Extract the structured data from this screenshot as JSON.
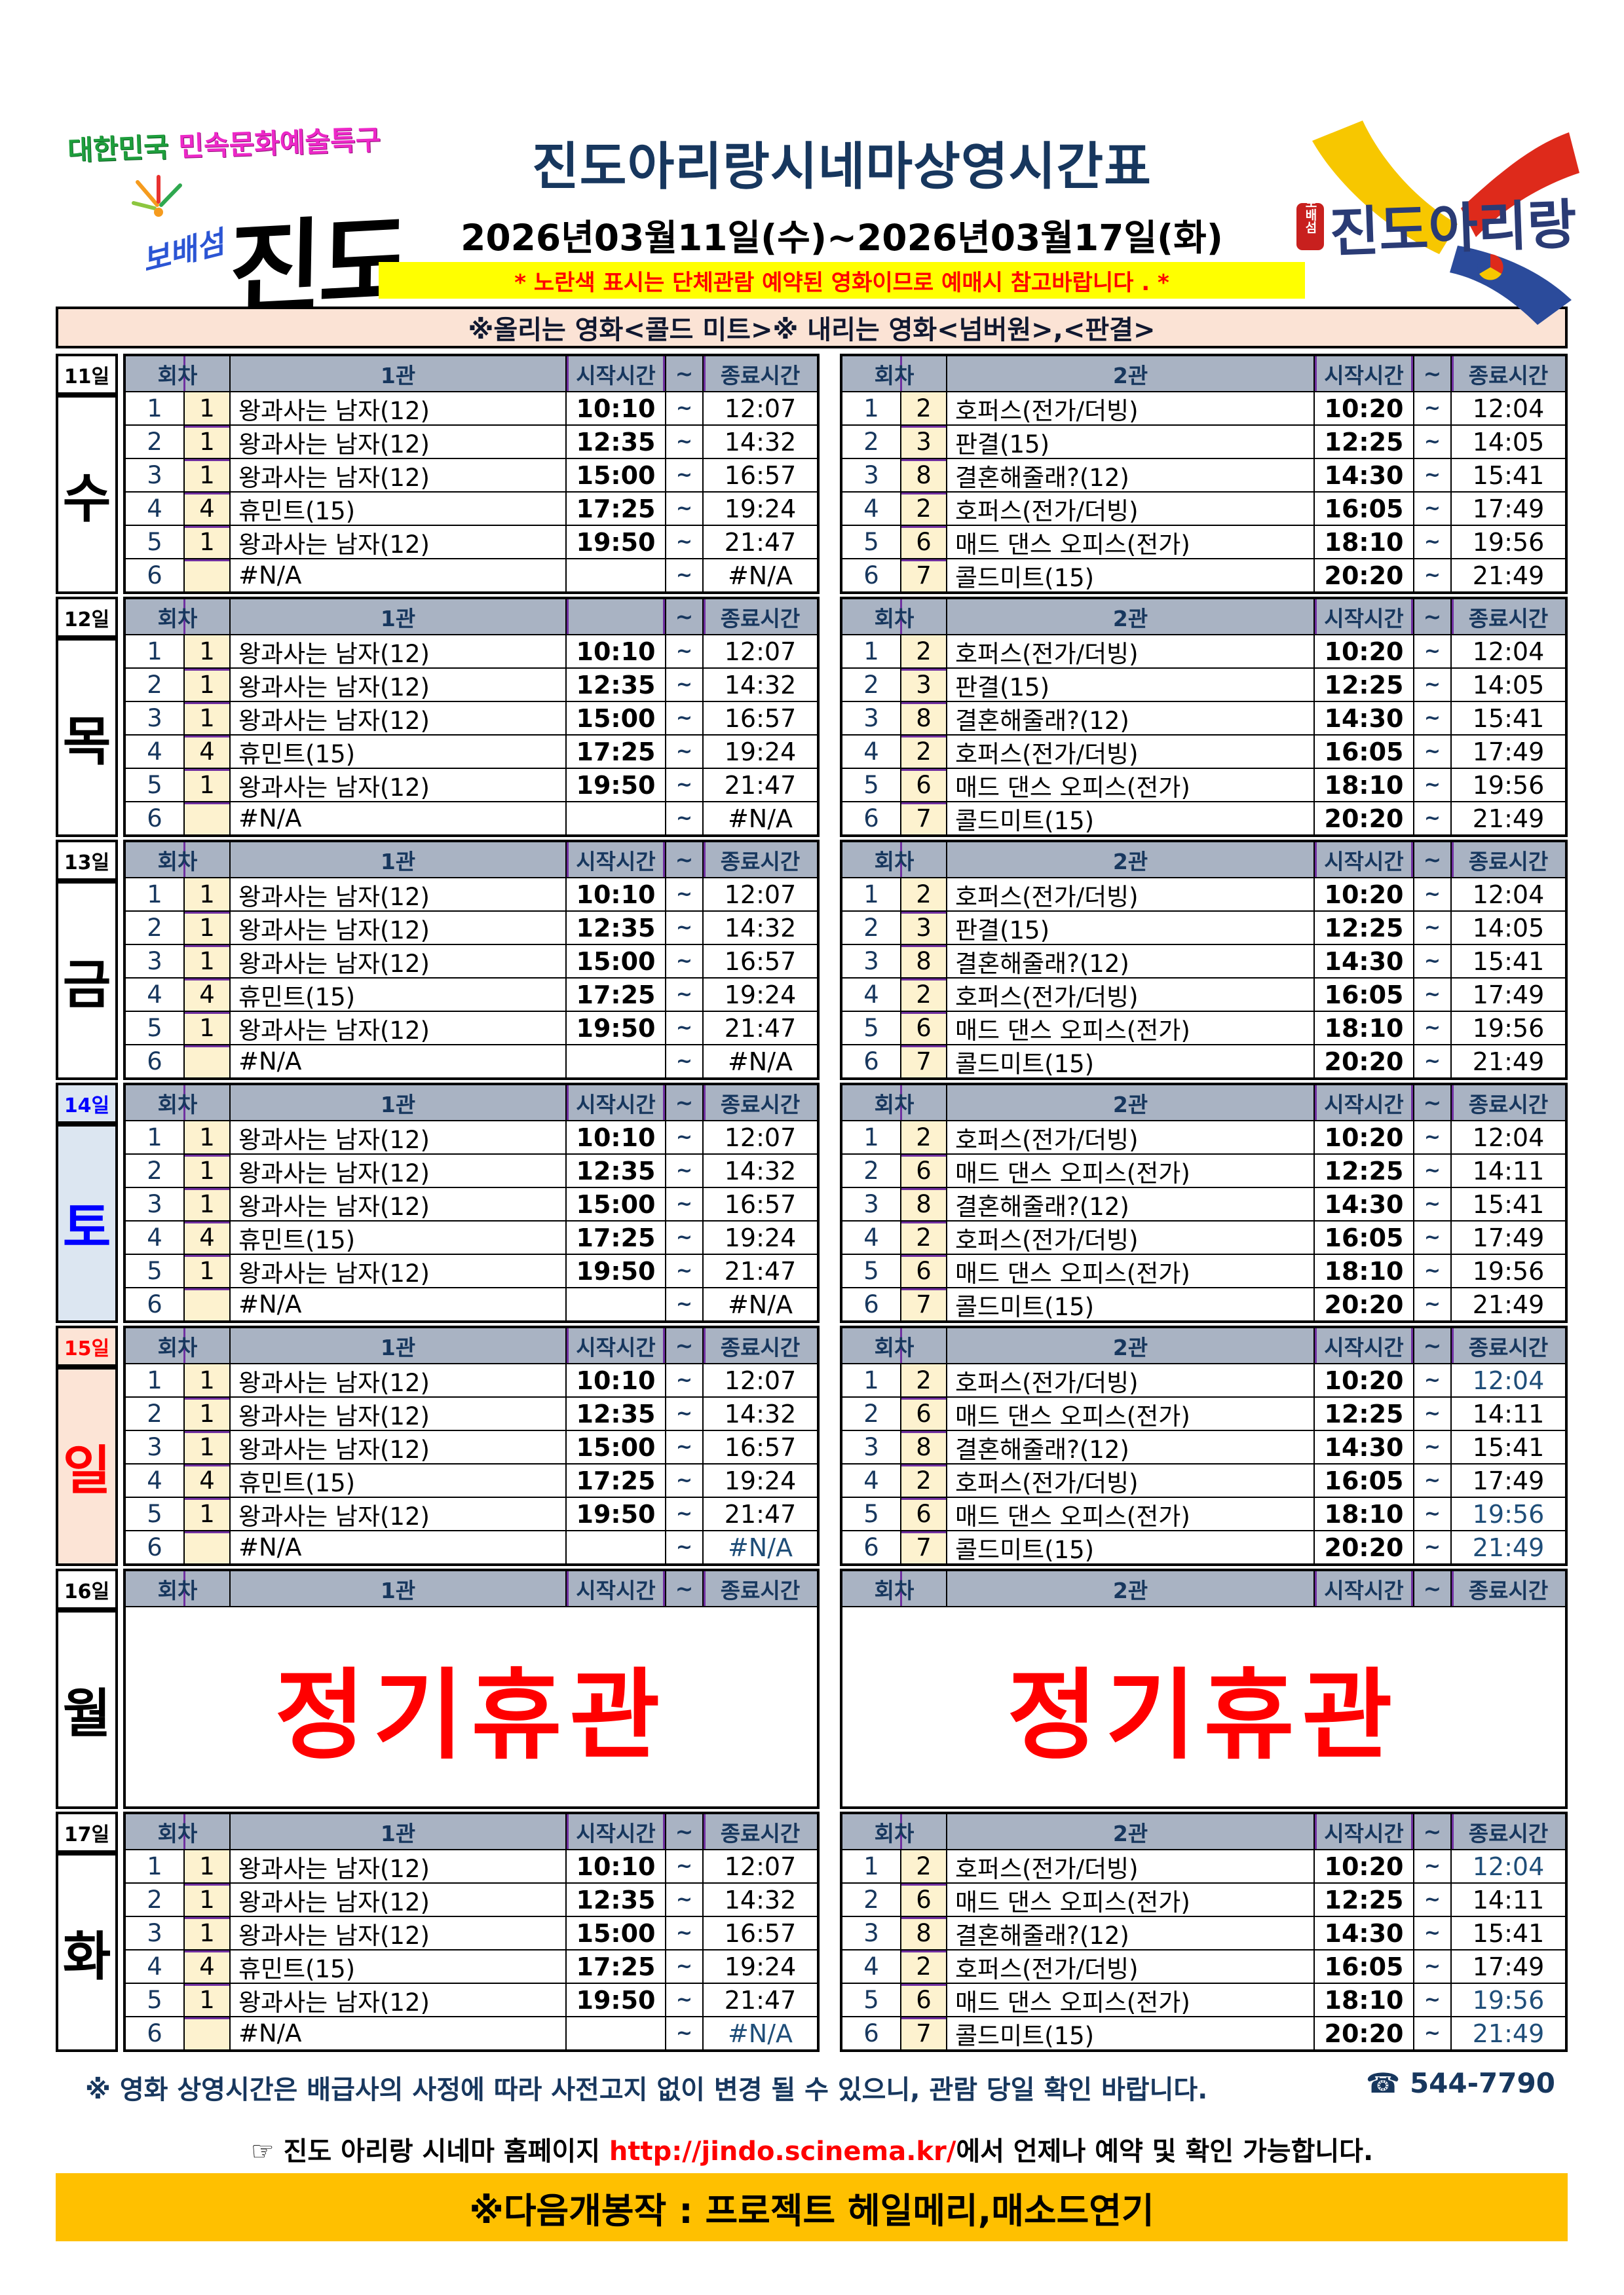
{
  "header": {
    "badge_line1a": "대한민국",
    "badge_line1b": " 민속문화예술특구",
    "badge_line2a": "보배섬",
    "badge_line2b": "진도",
    "title": "진도아리랑시네마상영시간표",
    "date_range": "2026년03월11일(수)~2026년03월17일(화)",
    "yellow_notice": "* 노란색 표시는 단체관람 예약된 영화이므로 예매시 참고바랍니다 . *",
    "movie_notice": "※올리는 영화<콜드 미트>※ 내리는 영화<넘버원>,<판결>",
    "logo_right_text": "진도아리랑",
    "logo_right_seal": "보배섬"
  },
  "colors": {
    "navy": "#17375E",
    "header_bg": "#A9B3C3",
    "cream": "#FDF2CF",
    "purple": "#7030A0",
    "saturday_text": "#0000FF",
    "saturday_bg": "#DCE6F1",
    "sunday_text": "#FF0000",
    "sunday_bg": "#FCE4D6",
    "blue_time": "#1F4E79",
    "yellow_bar": "#FFFF00",
    "peach_bar": "#FBE3D5",
    "orange_banner": "#FFC000",
    "closed_red": "#FF0000"
  },
  "schedule": {
    "labels": {
      "round": "회차",
      "start": "시작시간",
      "tilde": "~",
      "end": "종료시간"
    },
    "closed_label": "정기휴관",
    "days": [
      {
        "date": "11일",
        "day": "수",
        "day_style": "",
        "closed": false,
        "t1": {
          "name": "1관",
          "start_header": "시작시간",
          "rows": [
            {
              "no": "1",
              "code": "1",
              "title": "왕과사는 남자(12)",
              "start": "10:10",
              "end": "12:07"
            },
            {
              "no": "2",
              "code": "1",
              "title": "왕과사는 남자(12)",
              "start": "12:35",
              "end": "14:32"
            },
            {
              "no": "3",
              "code": "1",
              "title": "왕과사는 남자(12)",
              "start": "15:00",
              "end": "16:57"
            },
            {
              "no": "4",
              "code": "4",
              "title": "휴민트(15)",
              "start": "17:25",
              "end": "19:24"
            },
            {
              "no": "5",
              "code": "1",
              "title": "왕과사는 남자(12)",
              "start": "19:50",
              "end": "21:47"
            },
            {
              "no": "6",
              "code": "",
              "title": "#N/A",
              "start": "",
              "end": "#N/A"
            }
          ]
        },
        "t2": {
          "name": "2관",
          "start_header": "시작시간",
          "rows": [
            {
              "no": "1",
              "code": "2",
              "title": "호퍼스(전가/더빙)",
              "start": "10:20",
              "end": "12:04"
            },
            {
              "no": "2",
              "code": "3",
              "title": "판결(15)",
              "start": "12:25",
              "end": "14:05"
            },
            {
              "no": "3",
              "code": "8",
              "title": "결혼해줄래?(12)",
              "start": "14:30",
              "end": "15:41"
            },
            {
              "no": "4",
              "code": "2",
              "title": "호퍼스(전가/더빙)",
              "start": "16:05",
              "end": "17:49"
            },
            {
              "no": "5",
              "code": "6",
              "title": "매드 댄스 오피스(전가)",
              "start": "18:10",
              "end": "19:56"
            },
            {
              "no": "6",
              "code": "7",
              "title": "콜드미트(15)",
              "start": "20:20",
              "end": "21:49"
            }
          ]
        }
      },
      {
        "date": "12일",
        "day": "목",
        "day_style": "",
        "closed": false,
        "t1": {
          "name": "1관",
          "start_header": "",
          "rows": [
            {
              "no": "1",
              "code": "1",
              "title": "왕과사는 남자(12)",
              "start": "10:10",
              "end": "12:07"
            },
            {
              "no": "2",
              "code": "1",
              "title": "왕과사는 남자(12)",
              "start": "12:35",
              "end": "14:32"
            },
            {
              "no": "3",
              "code": "1",
              "title": "왕과사는 남자(12)",
              "start": "15:00",
              "end": "16:57"
            },
            {
              "no": "4",
              "code": "4",
              "title": "휴민트(15)",
              "start": "17:25",
              "end": "19:24"
            },
            {
              "no": "5",
              "code": "1",
              "title": "왕과사는 남자(12)",
              "start": "19:50",
              "end": "21:47"
            },
            {
              "no": "6",
              "code": "",
              "title": "#N/A",
              "start": "",
              "end": "#N/A"
            }
          ]
        },
        "t2": {
          "name": "2관",
          "start_header": "시작시간",
          "rows": [
            {
              "no": "1",
              "code": "2",
              "title": "호퍼스(전가/더빙)",
              "start": "10:20",
              "end": "12:04"
            },
            {
              "no": "2",
              "code": "3",
              "title": "판결(15)",
              "start": "12:25",
              "end": "14:05"
            },
            {
              "no": "3",
              "code": "8",
              "title": "결혼해줄래?(12)",
              "start": "14:30",
              "end": "15:41"
            },
            {
              "no": "4",
              "code": "2",
              "title": "호퍼스(전가/더빙)",
              "start": "16:05",
              "end": "17:49"
            },
            {
              "no": "5",
              "code": "6",
              "title": "매드 댄스 오피스(전가)",
              "start": "18:10",
              "end": "19:56"
            },
            {
              "no": "6",
              "code": "7",
              "title": "콜드미트(15)",
              "start": "20:20",
              "end": "21:49"
            }
          ]
        }
      },
      {
        "date": "13일",
        "day": "금",
        "day_style": "",
        "closed": false,
        "t1": {
          "name": "1관",
          "start_header": "시작시간",
          "rows": [
            {
              "no": "1",
              "code": "1",
              "title": "왕과사는 남자(12)",
              "start": "10:10",
              "end": "12:07"
            },
            {
              "no": "2",
              "code": "1",
              "title": "왕과사는 남자(12)",
              "start": "12:35",
              "end": "14:32"
            },
            {
              "no": "3",
              "code": "1",
              "title": "왕과사는 남자(12)",
              "start": "15:00",
              "end": "16:57"
            },
            {
              "no": "4",
              "code": "4",
              "title": "휴민트(15)",
              "start": "17:25",
              "end": "19:24"
            },
            {
              "no": "5",
              "code": "1",
              "title": "왕과사는 남자(12)",
              "start": "19:50",
              "end": "21:47"
            },
            {
              "no": "6",
              "code": "",
              "title": "#N/A",
              "start": "",
              "end": "#N/A"
            }
          ]
        },
        "t2": {
          "name": "2관",
          "start_header": "시작시간",
          "rows": [
            {
              "no": "1",
              "code": "2",
              "title": "호퍼스(전가/더빙)",
              "start": "10:20",
              "end": "12:04"
            },
            {
              "no": "2",
              "code": "3",
              "title": "판결(15)",
              "start": "12:25",
              "end": "14:05"
            },
            {
              "no": "3",
              "code": "8",
              "title": "결혼해줄래?(12)",
              "start": "14:30",
              "end": "15:41"
            },
            {
              "no": "4",
              "code": "2",
              "title": "호퍼스(전가/더빙)",
              "start": "16:05",
              "end": "17:49"
            },
            {
              "no": "5",
              "code": "6",
              "title": "매드 댄스 오피스(전가)",
              "start": "18:10",
              "end": "19:56"
            },
            {
              "no": "6",
              "code": "7",
              "title": "콜드미트(15)",
              "start": "20:20",
              "end": "21:49"
            }
          ]
        }
      },
      {
        "date": "14일",
        "day": "토",
        "day_style": "sat",
        "closed": false,
        "t1": {
          "name": "1관",
          "start_header": "시작시간",
          "rows": [
            {
              "no": "1",
              "code": "1",
              "title": "왕과사는 남자(12)",
              "start": "10:10",
              "end": "12:07"
            },
            {
              "no": "2",
              "code": "1",
              "title": "왕과사는 남자(12)",
              "start": "12:35",
              "end": "14:32"
            },
            {
              "no": "3",
              "code": "1",
              "title": "왕과사는 남자(12)",
              "start": "15:00",
              "end": "16:57"
            },
            {
              "no": "4",
              "code": "4",
              "title": "휴민트(15)",
              "start": "17:25",
              "end": "19:24"
            },
            {
              "no": "5",
              "code": "1",
              "title": "왕과사는 남자(12)",
              "start": "19:50",
              "end": "21:47"
            },
            {
              "no": "6",
              "code": "",
              "title": "#N/A",
              "start": "",
              "end": "#N/A"
            }
          ]
        },
        "t2": {
          "name": "2관",
          "start_header": "시작시간",
          "rows": [
            {
              "no": "1",
              "code": "2",
              "title": "호퍼스(전가/더빙)",
              "start": "10:20",
              "end": "12:04"
            },
            {
              "no": "2",
              "code": "6",
              "title": "매드 댄스 오피스(전가)",
              "start": "12:25",
              "end": "14:11"
            },
            {
              "no": "3",
              "code": "8",
              "title": "결혼해줄래?(12)",
              "start": "14:30",
              "end": "15:41"
            },
            {
              "no": "4",
              "code": "2",
              "title": "호퍼스(전가/더빙)",
              "start": "16:05",
              "end": "17:49"
            },
            {
              "no": "5",
              "code": "6",
              "title": "매드 댄스 오피스(전가)",
              "start": "18:10",
              "end": "19:56"
            },
            {
              "no": "6",
              "code": "7",
              "title": "콜드미트(15)",
              "start": "20:20",
              "end": "21:49"
            }
          ]
        }
      },
      {
        "date": "15일",
        "day": "일",
        "day_style": "sun",
        "closed": false,
        "t1": {
          "name": "1관",
          "start_header": "시작시간",
          "rows": [
            {
              "no": "1",
              "code": "1",
              "title": "왕과사는 남자(12)",
              "start": "10:10",
              "end": "12:07"
            },
            {
              "no": "2",
              "code": "1",
              "title": "왕과사는 남자(12)",
              "start": "12:35",
              "end": "14:32"
            },
            {
              "no": "3",
              "code": "1",
              "title": "왕과사는 남자(12)",
              "start": "15:00",
              "end": "16:57"
            },
            {
              "no": "4",
              "code": "4",
              "title": "휴민트(15)",
              "start": "17:25",
              "end": "19:24"
            },
            {
              "no": "5",
              "code": "1",
              "title": "왕과사는 남자(12)",
              "start": "19:50",
              "end": "21:47"
            },
            {
              "no": "6",
              "code": "",
              "title": "#N/A",
              "start": "",
              "end": "#N/A",
              "end_blue": true
            }
          ]
        },
        "t2": {
          "name": "2관",
          "start_header": "시작시간",
          "rows": [
            {
              "no": "1",
              "code": "2",
              "title": "호퍼스(전가/더빙)",
              "start": "10:20",
              "end": "12:04",
              "end_blue": true
            },
            {
              "no": "2",
              "code": "6",
              "title": "매드 댄스 오피스(전가)",
              "start": "12:25",
              "end": "14:11"
            },
            {
              "no": "3",
              "code": "8",
              "title": "결혼해줄래?(12)",
              "start": "14:30",
              "end": "15:41"
            },
            {
              "no": "4",
              "code": "2",
              "title": "호퍼스(전가/더빙)",
              "start": "16:05",
              "end": "17:49"
            },
            {
              "no": "5",
              "code": "6",
              "title": "매드 댄스 오피스(전가)",
              "start": "18:10",
              "end": "19:56",
              "end_blue": true
            },
            {
              "no": "6",
              "code": "7",
              "title": "콜드미트(15)",
              "start": "20:20",
              "end": "21:49",
              "end_blue": true
            }
          ]
        }
      },
      {
        "date": "16일",
        "day": "월",
        "day_style": "",
        "closed": true,
        "t1": {
          "name": "1관",
          "start_header": "시작시간",
          "rows": []
        },
        "t2": {
          "name": "2관",
          "start_header": "시작시간",
          "rows": []
        }
      },
      {
        "date": "17일",
        "day": "화",
        "day_style": "",
        "closed": false,
        "t1": {
          "name": "1관",
          "start_header": "시작시간",
          "rows": [
            {
              "no": "1",
              "code": "1",
              "title": "왕과사는 남자(12)",
              "start": "10:10",
              "end": "12:07"
            },
            {
              "no": "2",
              "code": "1",
              "title": "왕과사는 남자(12)",
              "start": "12:35",
              "end": "14:32"
            },
            {
              "no": "3",
              "code": "1",
              "title": "왕과사는 남자(12)",
              "start": "15:00",
              "end": "16:57"
            },
            {
              "no": "4",
              "code": "4",
              "title": "휴민트(15)",
              "start": "17:25",
              "end": "19:24"
            },
            {
              "no": "5",
              "code": "1",
              "title": "왕과사는 남자(12)",
              "start": "19:50",
              "end": "21:47"
            },
            {
              "no": "6",
              "code": "",
              "title": "#N/A",
              "start": "",
              "end": "#N/A",
              "end_blue": true
            }
          ]
        },
        "t2": {
          "name": "2관",
          "start_header": "시작시간",
          "rows": [
            {
              "no": "1",
              "code": "2",
              "title": "호퍼스(전가/더빙)",
              "start": "10:20",
              "end": "12:04",
              "end_blue": true
            },
            {
              "no": "2",
              "code": "6",
              "title": "매드 댄스 오피스(전가)",
              "start": "12:25",
              "end": "14:11"
            },
            {
              "no": "3",
              "code": "8",
              "title": "결혼해줄래?(12)",
              "start": "14:30",
              "end": "15:41"
            },
            {
              "no": "4",
              "code": "2",
              "title": "호퍼스(전가/더빙)",
              "start": "16:05",
              "end": "17:49"
            },
            {
              "no": "5",
              "code": "6",
              "title": "매드 댄스 오피스(전가)",
              "start": "18:10",
              "end": "19:56",
              "end_blue": true
            },
            {
              "no": "6",
              "code": "7",
              "title": "콜드미트(15)",
              "start": "20:20",
              "end": "21:49",
              "end_blue": true
            }
          ]
        }
      }
    ]
  },
  "footer": {
    "notice": "※ 영화 상영시간은 배급사의 사정에 따라 사전고지 없이 변경 될 수 있으니, 관람 당일 확인 바랍니다.",
    "phone": "☎ 544-7790",
    "link_prefix": "☞ 진도 아리랑 시네마 홈페이지 ",
    "link_url": "http://jindo.scinema.kr/",
    "link_suffix": "에서 언제나 예약 및 확인 가능합니다.",
    "next_release": "※다음개봉작 : 프로젝트 헤일메리,매소드연기"
  }
}
